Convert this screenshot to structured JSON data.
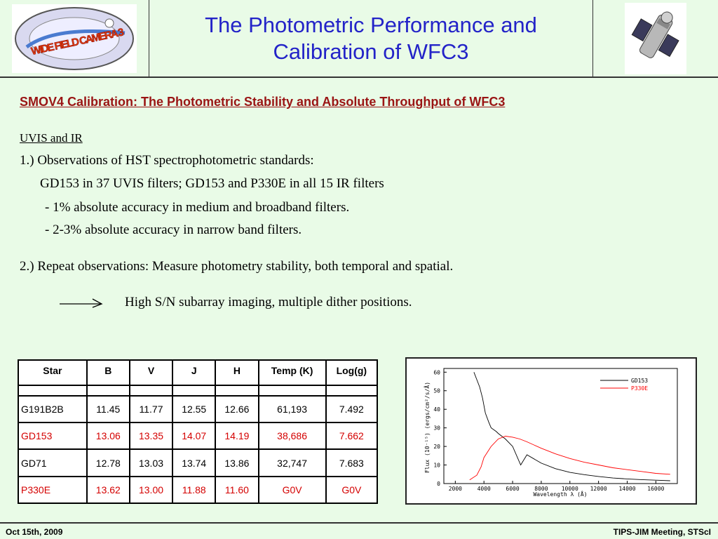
{
  "header": {
    "title_line1": "The Photometric Performance and",
    "title_line2": "Calibration of WFC3",
    "logo_text": "WIDE FIELD CAMERA 3"
  },
  "subtitle": "SMOV4 Calibration: The Photometric Stability and Absolute Throughput of WFC3",
  "body": {
    "uvis_ir": "UVIS and IR",
    "line1": "1.) Observations of HST spectrophotometric standards:",
    "line2": "GD153 in 37 UVIS filters; GD153 and P330E in all 15 IR filters",
    "line3": "- 1% absolute accuracy in medium and broadband filters.",
    "line4": "- 2-3% absolute accuracy in narrow band filters.",
    "line5": "2.) Repeat observations: Measure photometry stability, both temporal and spatial.",
    "line6": "High S/N subarray imaging, multiple dither positions."
  },
  "table": {
    "headers": [
      "Star",
      "B",
      "V",
      "J",
      "H",
      "Temp (K)",
      "Log(g)"
    ],
    "rows": [
      [
        "G191B2B",
        "11.45",
        "11.77",
        "12.55",
        "12.66",
        "61,193",
        "7.492"
      ],
      [
        "GD153",
        "13.06",
        "13.35",
        "14.07",
        "14.19",
        "38,686",
        "7.662"
      ],
      [
        "GD71",
        "12.78",
        "13.03",
        "13.74",
        "13.86",
        "32,747",
        "7.683"
      ],
      [
        "P330E",
        "13.62",
        "13.00",
        "11.88",
        "11.60",
        "G0V",
        "G0V"
      ]
    ]
  },
  "chart_data": {
    "type": "line",
    "xlabel": "Wavelength λ (Å)",
    "ylabel": "Flux (10⁻¹⁵) (ergs/cm²/s/Å)",
    "xlim": [
      1200,
      17500
    ],
    "ylim": [
      0,
      62
    ],
    "xticks": [
      2000,
      4000,
      6000,
      8000,
      10000,
      12000,
      14000,
      16000
    ],
    "yticks": [
      0,
      10,
      20,
      30,
      40,
      50,
      60
    ],
    "legend_position": "top-right",
    "series": [
      {
        "name": "GD153",
        "color": "#000000",
        "x": [
          3300,
          3500,
          3700,
          3900,
          4100,
          4340,
          4500,
          4861,
          5000,
          5500,
          6000,
          6563,
          7000,
          8000,
          9000,
          10000,
          11000,
          12000,
          13000,
          14000,
          15000,
          16000,
          17000
        ],
        "y": [
          60,
          56,
          52,
          46,
          38,
          33,
          30,
          28,
          27,
          24,
          20,
          10,
          15.5,
          11,
          8,
          6,
          4.8,
          3.8,
          3.0,
          2.5,
          2.1,
          1.8,
          1.5
        ]
      },
      {
        "name": "P330E",
        "color": "#ff0000",
        "x": [
          3000,
          3500,
          3800,
          4000,
          4500,
          5000,
          5500,
          6000,
          6500,
          7000,
          8000,
          9000,
          10000,
          11000,
          12000,
          13000,
          14000,
          15000,
          16000,
          17000
        ],
        "y": [
          2,
          4.5,
          9,
          14,
          20,
          24,
          25.5,
          25,
          24,
          22.5,
          19,
          16,
          13.5,
          11.5,
          10,
          8.5,
          7.5,
          6.5,
          5.5,
          5
        ]
      }
    ]
  },
  "footer": {
    "left": "Oct 15th, 2009",
    "right": "TIPS-JIM Meeting, STScI"
  }
}
